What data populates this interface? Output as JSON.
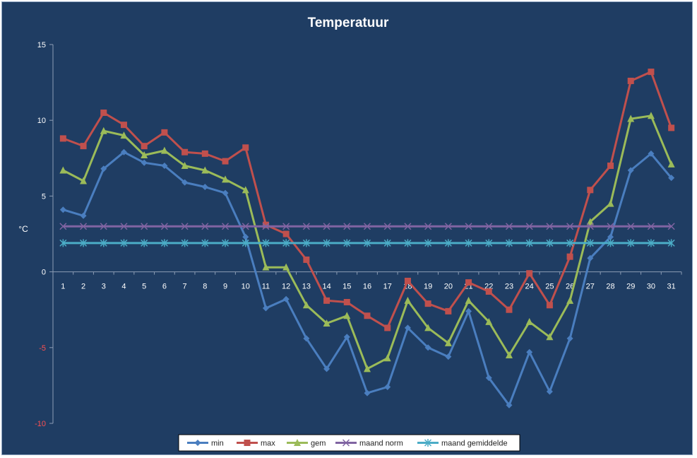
{
  "chart_data": {
    "type": "line",
    "title": "Temperatuur",
    "xlabel": "",
    "ylabel": "°C",
    "ylim": [
      -10,
      15
    ],
    "yticks": [
      15,
      10,
      5,
      0,
      -5,
      -10
    ],
    "x": [
      1,
      2,
      3,
      4,
      5,
      6,
      7,
      8,
      9,
      10,
      11,
      12,
      13,
      14,
      15,
      16,
      17,
      18,
      19,
      20,
      21,
      22,
      23,
      24,
      25,
      26,
      27,
      28,
      29,
      30,
      31
    ],
    "grid": false,
    "legend_position": "bottom",
    "series": [
      {
        "name": "min",
        "color": "#4a7ebf",
        "marker": "diamond",
        "values": [
          4.1,
          3.7,
          6.8,
          7.9,
          7.2,
          7.0,
          5.9,
          5.6,
          5.2,
          2.3,
          -2.4,
          -1.8,
          -4.4,
          -6.4,
          -4.3,
          -8.0,
          -7.6,
          -3.7,
          -5.0,
          -5.6,
          -2.6,
          -7.0,
          -8.8,
          -5.3,
          -7.9,
          -4.4,
          0.9,
          2.3,
          6.7,
          7.8,
          6.2
        ]
      },
      {
        "name": "max",
        "color": "#c0504d",
        "marker": "square",
        "values": [
          8.8,
          8.3,
          10.5,
          9.7,
          8.3,
          9.2,
          7.9,
          7.8,
          7.3,
          8.2,
          3.1,
          2.5,
          0.8,
          -1.9,
          -2.0,
          -2.9,
          -3.7,
          -0.6,
          -2.1,
          -2.6,
          -0.7,
          -1.3,
          -2.5,
          -0.1,
          -2.2,
          1.0,
          5.4,
          7.0,
          12.6,
          13.2,
          9.5
        ]
      },
      {
        "name": "gem",
        "color": "#9bbb59",
        "marker": "triangle",
        "values": [
          6.7,
          6.0,
          9.3,
          9.0,
          7.7,
          8.0,
          7.0,
          6.7,
          6.1,
          5.4,
          0.3,
          0.3,
          -2.2,
          -3.4,
          -2.9,
          -6.4,
          -5.7,
          -1.9,
          -3.7,
          -4.7,
          -1.9,
          -3.3,
          -5.5,
          -3.3,
          -4.3,
          -1.9,
          3.3,
          4.5,
          10.1,
          10.3,
          7.1
        ]
      },
      {
        "name": "maand norm",
        "color": "#8064a2",
        "marker": "x",
        "values": [
          3.0,
          3.0,
          3.0,
          3.0,
          3.0,
          3.0,
          3.0,
          3.0,
          3.0,
          3.0,
          3.0,
          3.0,
          3.0,
          3.0,
          3.0,
          3.0,
          3.0,
          3.0,
          3.0,
          3.0,
          3.0,
          3.0,
          3.0,
          3.0,
          3.0,
          3.0,
          3.0,
          3.0,
          3.0,
          3.0,
          3.0
        ]
      },
      {
        "name": "maand gemiddelde",
        "color": "#4bacc6",
        "marker": "star",
        "values": [
          1.9,
          1.9,
          1.9,
          1.9,
          1.9,
          1.9,
          1.9,
          1.9,
          1.9,
          1.9,
          1.9,
          1.9,
          1.9,
          1.9,
          1.9,
          1.9,
          1.9,
          1.9,
          1.9,
          1.9,
          1.9,
          1.9,
          1.9,
          1.9,
          1.9,
          1.9,
          1.9,
          1.9,
          1.9,
          1.9,
          1.9
        ]
      }
    ]
  }
}
